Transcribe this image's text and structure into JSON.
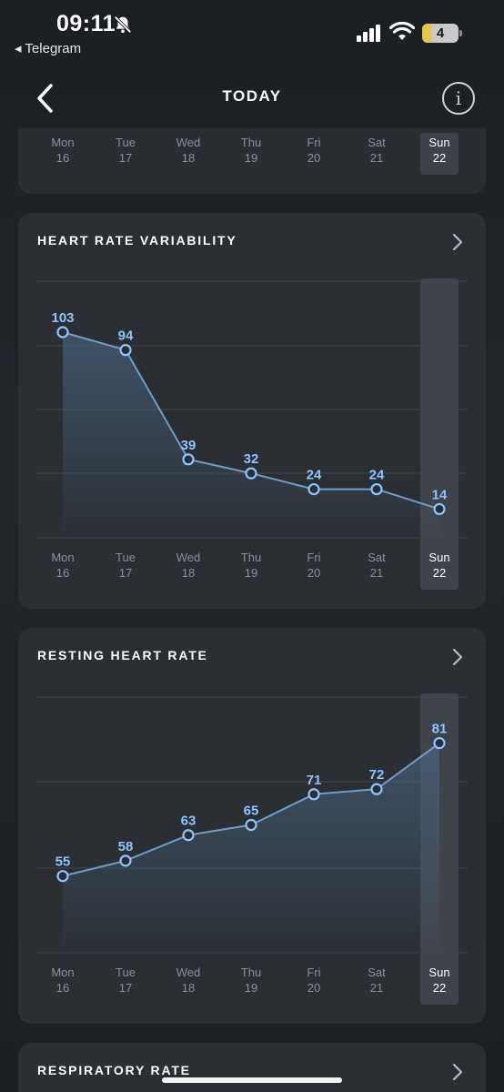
{
  "status_bar": {
    "time": "09:11",
    "back_app": "◂ Telegram",
    "battery": "4"
  },
  "nav": {
    "title": "TODAY"
  },
  "week": [
    {
      "day": "Mon",
      "date": "16"
    },
    {
      "day": "Tue",
      "date": "17"
    },
    {
      "day": "Wed",
      "date": "18"
    },
    {
      "day": "Thu",
      "date": "19"
    },
    {
      "day": "Fri",
      "date": "20"
    },
    {
      "day": "Sat",
      "date": "21"
    },
    {
      "day": "Sun",
      "date": "22"
    }
  ],
  "selected_index": 6,
  "colors": {
    "accent": "#8cc4ff",
    "line": "#6f9dc9",
    "card": "#2b2f34",
    "grid": "#3f444a"
  },
  "cards": {
    "hrv": {
      "title": "HEART RATE VARIABILITY"
    },
    "rhr": {
      "title": "RESTING HEART RATE"
    },
    "resp": {
      "title": "RESPIRATORY RATE"
    }
  },
  "chart_data": [
    {
      "type": "line",
      "title": "HEART RATE VARIABILITY",
      "categories": [
        "Mon 16",
        "Tue 17",
        "Wed 18",
        "Thu 19",
        "Fri 20",
        "Sat 21",
        "Sun 22"
      ],
      "values": [
        103,
        94,
        39,
        32,
        24,
        24,
        14
      ],
      "ylim": [
        0,
        130
      ],
      "grid": true
    },
    {
      "type": "line",
      "title": "RESTING HEART RATE",
      "categories": [
        "Mon 16",
        "Tue 17",
        "Wed 18",
        "Thu 19",
        "Fri 20",
        "Sat 21",
        "Sun 22"
      ],
      "values": [
        55,
        58,
        63,
        65,
        71,
        72,
        81
      ],
      "ylim": [
        40,
        90
      ],
      "grid": true
    }
  ]
}
